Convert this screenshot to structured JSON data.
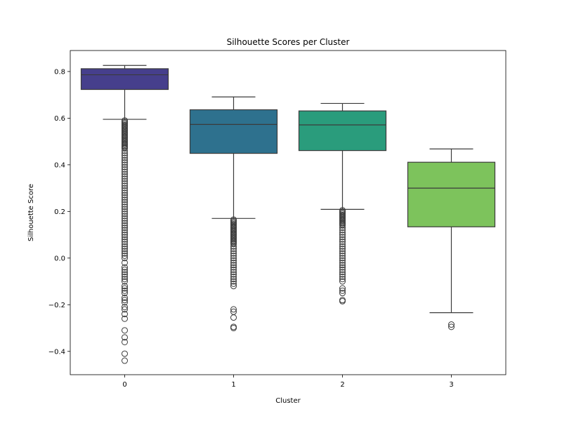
{
  "chart_data": {
    "type": "box",
    "title": "Silhouette Scores per Cluster",
    "xlabel": "Cluster",
    "ylabel": "Silhouette Score",
    "ylim": [
      -0.5,
      0.89
    ],
    "yticks": [
      -0.4,
      -0.2,
      0.0,
      0.2,
      0.4,
      0.6,
      0.8
    ],
    "ytick_labels": [
      "−0.4",
      "−0.2",
      "0.0",
      "0.2",
      "0.4",
      "0.6",
      "0.8"
    ],
    "categories": [
      "0",
      "1",
      "2",
      "3"
    ],
    "grid": false,
    "boxes": [
      {
        "category": "0",
        "color": "#463f8c",
        "whisker_low": 0.595,
        "q1": 0.723,
        "median": 0.786,
        "q3": 0.812,
        "whisker_high": 0.826,
        "outliers": [
          0.59,
          0.585,
          0.58,
          0.575,
          0.57,
          0.565,
          0.56,
          0.555,
          0.55,
          0.545,
          0.54,
          0.535,
          0.53,
          0.525,
          0.52,
          0.515,
          0.51,
          0.505,
          0.5,
          0.495,
          0.49,
          0.485,
          0.48,
          0.475,
          0.47,
          0.46,
          0.45,
          0.44,
          0.43,
          0.42,
          0.41,
          0.4,
          0.39,
          0.38,
          0.37,
          0.36,
          0.35,
          0.34,
          0.33,
          0.32,
          0.31,
          0.3,
          0.29,
          0.28,
          0.27,
          0.26,
          0.25,
          0.24,
          0.23,
          0.22,
          0.21,
          0.2,
          0.19,
          0.18,
          0.17,
          0.16,
          0.15,
          0.14,
          0.13,
          0.12,
          0.11,
          0.1,
          0.09,
          0.08,
          0.07,
          0.06,
          0.05,
          0.04,
          0.03,
          0.02,
          0.01,
          0.0,
          -0.02,
          -0.04,
          -0.05,
          -0.06,
          -0.07,
          -0.08,
          -0.09,
          -0.1,
          -0.12,
          -0.13,
          -0.14,
          -0.15,
          -0.17,
          -0.18,
          -0.19,
          -0.21,
          -0.22,
          -0.24,
          -0.26,
          -0.31,
          -0.34,
          -0.36,
          -0.41,
          -0.44
        ]
      },
      {
        "category": "1",
        "color": "#2e718e",
        "whisker_low": 0.17,
        "q1": 0.449,
        "median": 0.573,
        "q3": 0.636,
        "whisker_high": 0.691,
        "outliers": [
          0.165,
          0.16,
          0.155,
          0.15,
          0.145,
          0.14,
          0.135,
          0.13,
          0.125,
          0.12,
          0.115,
          0.11,
          0.105,
          0.1,
          0.095,
          0.09,
          0.085,
          0.08,
          0.075,
          0.07,
          0.065,
          0.06,
          0.05,
          0.04,
          0.03,
          0.02,
          0.01,
          0.0,
          -0.01,
          -0.02,
          -0.03,
          -0.04,
          -0.05,
          -0.06,
          -0.07,
          -0.08,
          -0.09,
          -0.1,
          -0.11,
          -0.12,
          -0.22,
          -0.23,
          -0.255,
          -0.295,
          -0.3
        ]
      },
      {
        "category": "2",
        "color": "#2a9c7c",
        "whisker_low": 0.209,
        "q1": 0.461,
        "median": 0.571,
        "q3": 0.631,
        "whisker_high": 0.663,
        "outliers": [
          0.205,
          0.2,
          0.195,
          0.19,
          0.185,
          0.18,
          0.175,
          0.17,
          0.165,
          0.16,
          0.155,
          0.15,
          0.145,
          0.14,
          0.13,
          0.12,
          0.11,
          0.1,
          0.09,
          0.08,
          0.07,
          0.06,
          0.05,
          0.04,
          0.03,
          0.02,
          0.01,
          0.0,
          -0.01,
          -0.02,
          -0.03,
          -0.04,
          -0.05,
          -0.06,
          -0.07,
          -0.08,
          -0.09,
          -0.1,
          -0.13,
          -0.14,
          -0.15,
          -0.18,
          -0.185
        ]
      },
      {
        "category": "3",
        "color": "#7dc35c",
        "whisker_low": -0.234,
        "q1": 0.134,
        "median": 0.3,
        "q3": 0.411,
        "whisker_high": 0.468,
        "outliers": [
          -0.285,
          -0.295
        ]
      }
    ]
  }
}
